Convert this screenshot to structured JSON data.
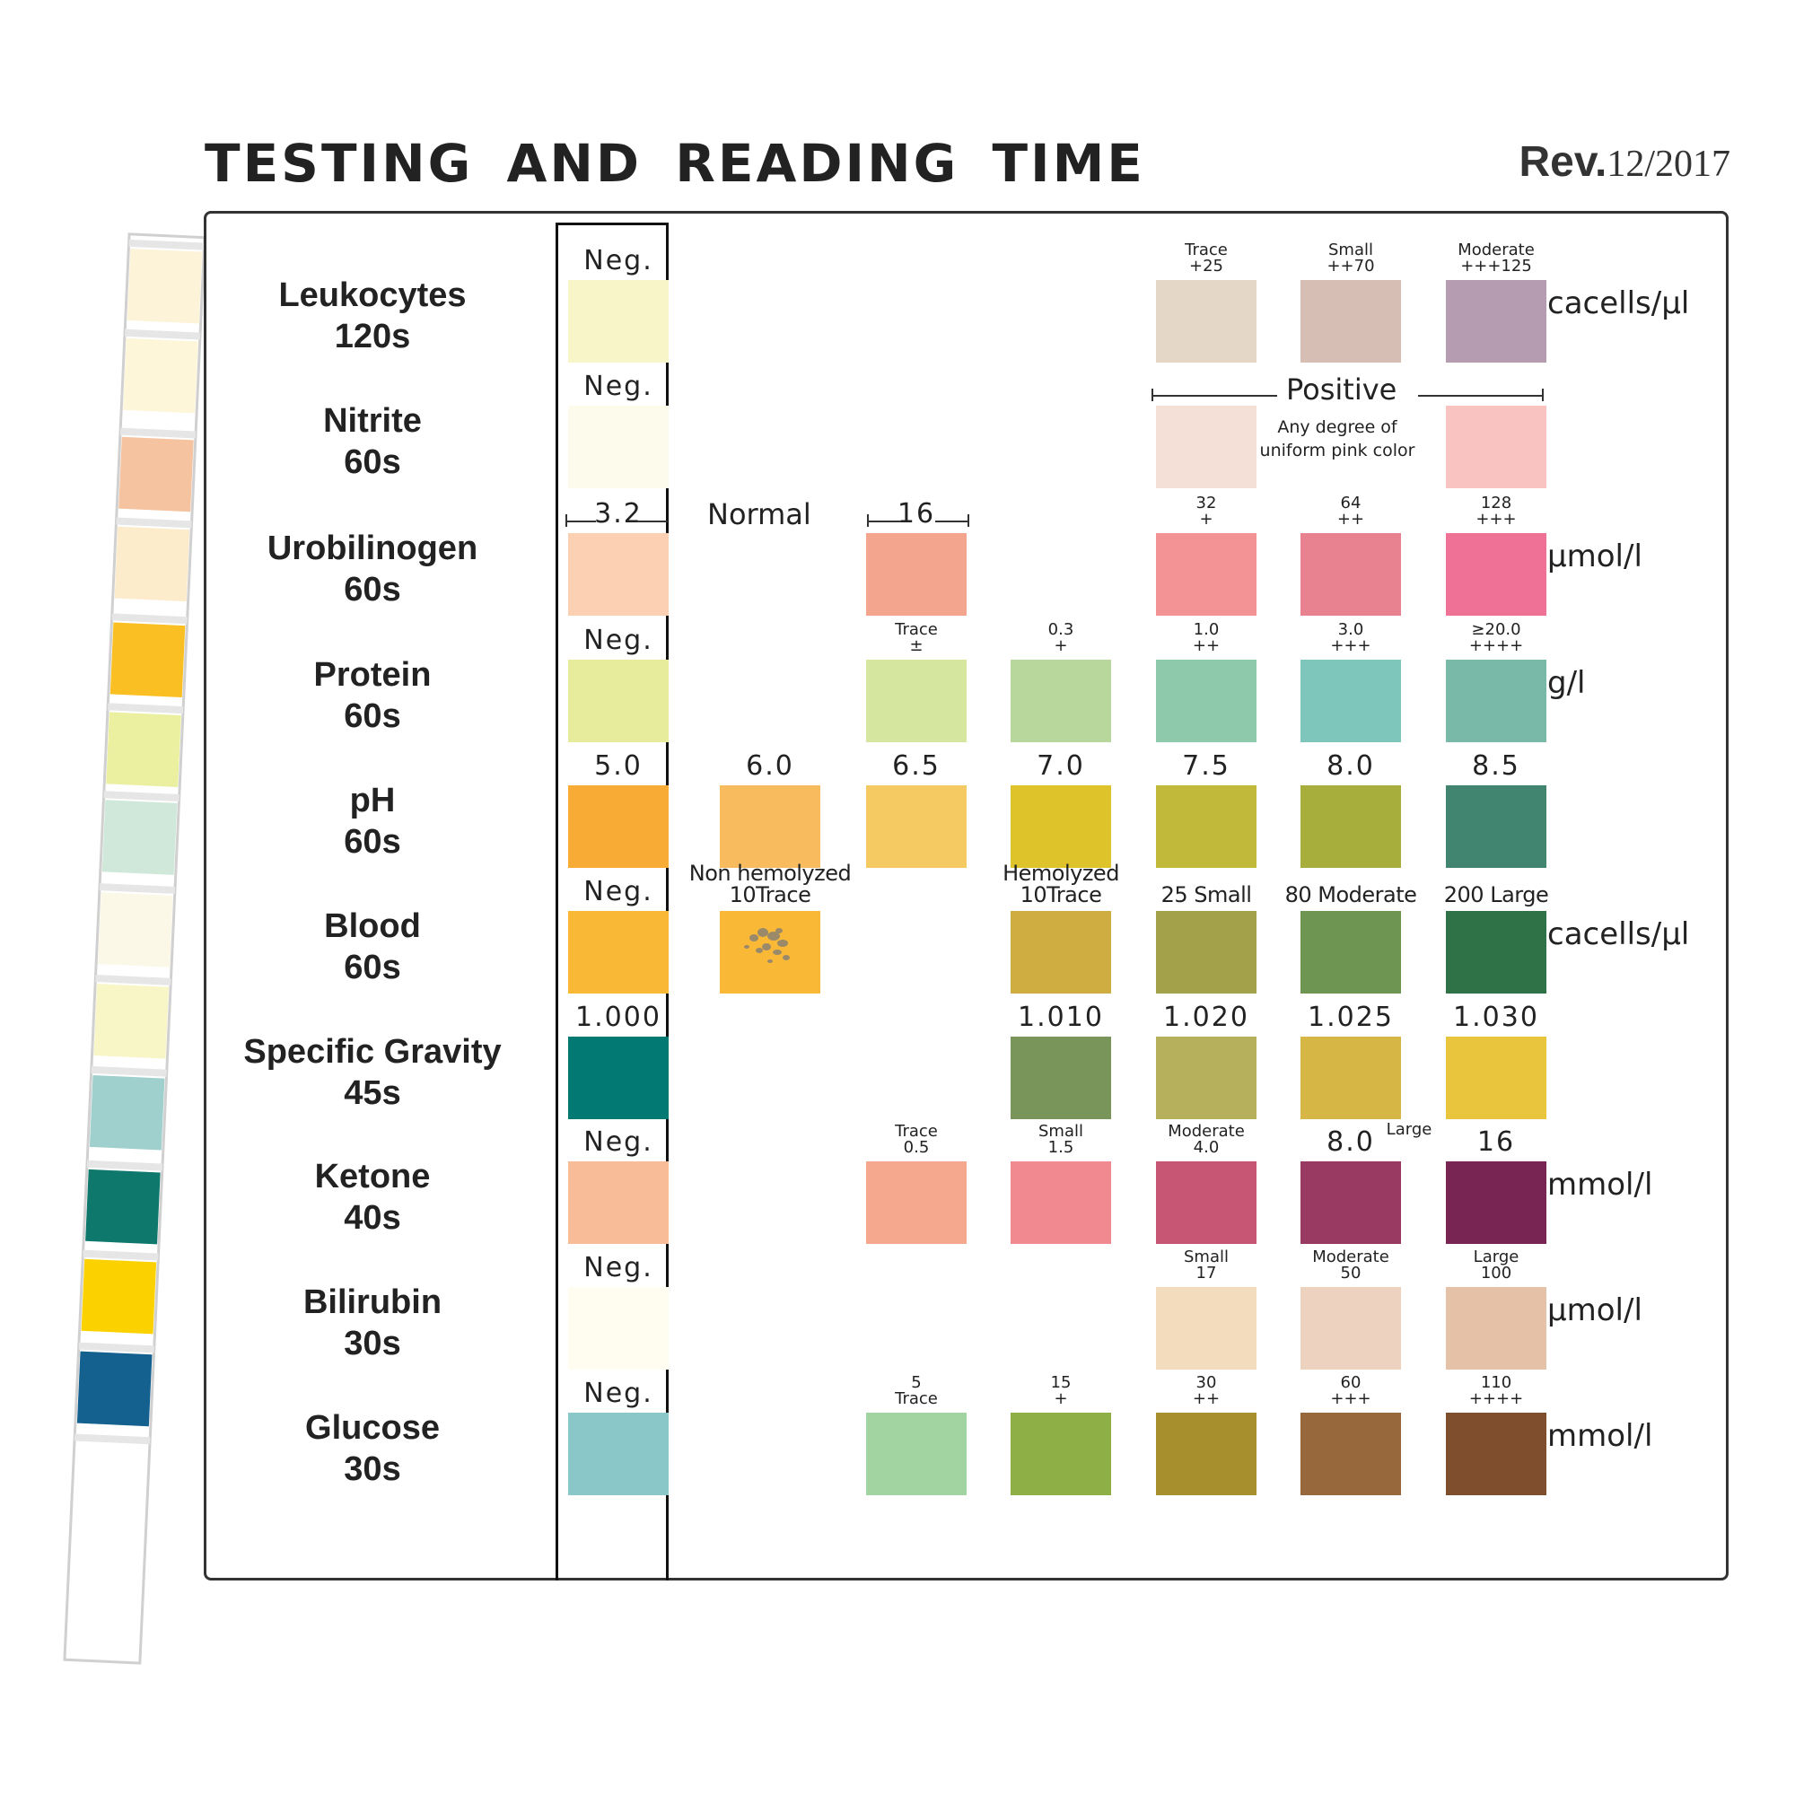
{
  "header": {
    "title": "TESTING AND READING TIME",
    "rev_label": "Rev.",
    "rev_date": "12/2017"
  },
  "strip": {
    "pad_colors": [
      "#fdf3d8",
      "#fdf6d9",
      "#f5c39f",
      "#fceccc",
      "#f9bf23",
      "#eaf0a0",
      "#cfe8d9",
      "#fbf8e8",
      "#f8f6c6",
      "#9fd0ce",
      "#0f786d",
      "#fbd200",
      "#14618f",
      "#ffffff"
    ]
  },
  "rows": [
    {
      "name": "Leukocytes",
      "time": "120s",
      "unit": "cacells/µl",
      "neg": {
        "caption": [
          "Neg."
        ],
        "color": "#f8f6c8"
      },
      "pads": [
        {
          "col": 3,
          "caption": [
            "Trace",
            "+25"
          ],
          "color": "#e4d7c8"
        },
        {
          "col": 4,
          "caption": [
            "Small",
            "++70"
          ],
          "color": "#d7beb5"
        },
        {
          "col": 5,
          "caption": [
            "Moderate",
            "+++125"
          ],
          "color": "#b59cb1"
        }
      ]
    },
    {
      "name": "Nitrite",
      "time": "60s",
      "unit": "",
      "neg": {
        "caption": [
          "Neg."
        ],
        "color": "#fdfbeb"
      },
      "pads": [
        {
          "col": 3,
          "caption": [],
          "color": "#f5e0d7"
        },
        {
          "col": 5,
          "caption": [],
          "color": "#f8c3c0"
        }
      ]
    },
    {
      "name": "Urobilinogen",
      "time": "60s",
      "unit": "µmol/l",
      "neg": {
        "caption": [
          "3.2"
        ],
        "color": "#fbd0b3"
      },
      "pads": [
        {
          "col": 1,
          "caption": [
            "16"
          ],
          "color": "#f4a58d"
        },
        {
          "col": 3,
          "caption": [
            "32",
            "+"
          ],
          "color": "#f39396"
        },
        {
          "col": 4,
          "caption": [
            "64",
            "++"
          ],
          "color": "#e88290"
        },
        {
          "col": 5,
          "caption": [
            "128",
            "+++"
          ],
          "color": "#ef7195"
        }
      ]
    },
    {
      "name": "Protein",
      "time": "60s",
      "unit": "g/l",
      "neg": {
        "caption": [
          "Neg."
        ],
        "color": "#e7ec9d"
      },
      "pads": [
        {
          "col": 1,
          "caption": [
            "Trace",
            "±"
          ],
          "color": "#d5e79f"
        },
        {
          "col": 2,
          "caption": [
            "0.3",
            "+"
          ],
          "color": "#b7d79c"
        },
        {
          "col": 3,
          "caption": [
            "1.0",
            "++"
          ],
          "color": "#8fc9ac"
        },
        {
          "col": 4,
          "caption": [
            "3.0",
            "+++"
          ],
          "color": "#7ec6bc"
        },
        {
          "col": 5,
          "caption": [
            "≥20.0",
            "++++"
          ],
          "color": "#79b9a8"
        }
      ]
    },
    {
      "name": "pH",
      "time": "60s",
      "unit": "",
      "neg": {
        "caption": [
          "5.0"
        ],
        "color": "#f8ab35"
      },
      "pads": [
        {
          "col": 0,
          "caption": [
            "6.0"
          ],
          "color": "#f8bb5e"
        },
        {
          "col": 1,
          "caption": [
            "6.5"
          ],
          "color": "#f6ca63"
        },
        {
          "col": 2,
          "caption": [
            "7.0"
          ],
          "color": "#dfc32a"
        },
        {
          "col": 3,
          "caption": [
            "7.5"
          ],
          "color": "#c0b93a"
        },
        {
          "col": 4,
          "caption": [
            "8.0"
          ],
          "color": "#a8ae3c"
        },
        {
          "col": 5,
          "caption": [
            "8.5"
          ],
          "color": "#418571"
        }
      ]
    },
    {
      "name": "Blood",
      "time": "60s",
      "unit": "cacells/µl",
      "neg": {
        "caption": [
          "Neg."
        ],
        "color": "#f9b937"
      },
      "pads": [
        {
          "col": 0,
          "caption": [
            "Non hemolyzed",
            "10Trace"
          ],
          "color": "#f9b937",
          "speckled": true
        },
        {
          "col": 2,
          "caption": [
            "Hemolyzed",
            "10Trace"
          ],
          "color": "#d0ad40"
        },
        {
          "col": 3,
          "caption": [
            "25 Small"
          ],
          "color": "#a3a24a"
        },
        {
          "col": 4,
          "caption": [
            "80 Moderate"
          ],
          "color": "#6e9552"
        },
        {
          "col": 5,
          "caption": [
            "200 Large"
          ],
          "color": "#2f7247"
        }
      ]
    },
    {
      "name": "Specific Gravity",
      "time": "45s",
      "unit": "",
      "neg": {
        "caption": [
          "1.000"
        ],
        "color": "#037974"
      },
      "pads": [
        {
          "col": 2,
          "caption": [
            "1.010"
          ],
          "color": "#7a9559"
        },
        {
          "col": 3,
          "caption": [
            "1.020"
          ],
          "color": "#b6b05c"
        },
        {
          "col": 4,
          "caption": [
            "1.025"
          ],
          "color": "#d6b746"
        },
        {
          "col": 5,
          "caption": [
            "1.030"
          ],
          "color": "#e8c53c"
        }
      ]
    },
    {
      "name": "Ketone",
      "time": "40s",
      "unit": "mmol/l",
      "neg": {
        "caption": [
          "Neg."
        ],
        "color": "#f9bc99"
      },
      "pads": [
        {
          "col": 1,
          "caption": [
            "Trace",
            "0.5"
          ],
          "color": "#f6a88e"
        },
        {
          "col": 2,
          "caption": [
            "Small",
            "1.5"
          ],
          "color": "#f08a90"
        },
        {
          "col": 3,
          "caption": [
            "Moderate",
            "4.0"
          ],
          "color": "#c65674"
        },
        {
          "col": 4,
          "caption": [
            "8.0"
          ],
          "color": "#983a62"
        },
        {
          "col": 5,
          "caption": [
            "16"
          ],
          "color": "#792554"
        }
      ],
      "extra_label": "Large"
    },
    {
      "name": "Bilirubin",
      "time": "30s",
      "unit": "µmol/l",
      "neg": {
        "caption": [
          "Neg."
        ],
        "color": "#fefdef"
      },
      "pads": [
        {
          "col": 3,
          "caption": [
            "Small",
            "17"
          ],
          "color": "#f3dbbd"
        },
        {
          "col": 4,
          "caption": [
            "Moderate",
            "50"
          ],
          "color": "#edd3bf"
        },
        {
          "col": 5,
          "caption": [
            "Large",
            "100"
          ],
          "color": "#e5c1a8"
        }
      ]
    },
    {
      "name": "Glucose",
      "time": "30s",
      "unit": "mmol/l",
      "neg": {
        "caption": [
          "Neg."
        ],
        "color": "#8ac7c8"
      },
      "pads": [
        {
          "col": 1,
          "caption": [
            "5",
            "Trace"
          ],
          "color": "#a2d4a2"
        },
        {
          "col": 2,
          "caption": [
            "15",
            "+"
          ],
          "color": "#8eae46"
        },
        {
          "col": 3,
          "caption": [
            "30",
            "++"
          ],
          "color": "#a88f2d"
        },
        {
          "col": 4,
          "caption": [
            "60",
            "+++"
          ],
          "color": "#97683c"
        },
        {
          "col": 5,
          "caption": [
            "110",
            "++++"
          ],
          "color": "#7e4e2d"
        }
      ]
    }
  ],
  "annotations": {
    "positive": "Positive",
    "positive_note": [
      "Any degree of",
      "uniform pink color"
    ],
    "normal": "Normal"
  }
}
